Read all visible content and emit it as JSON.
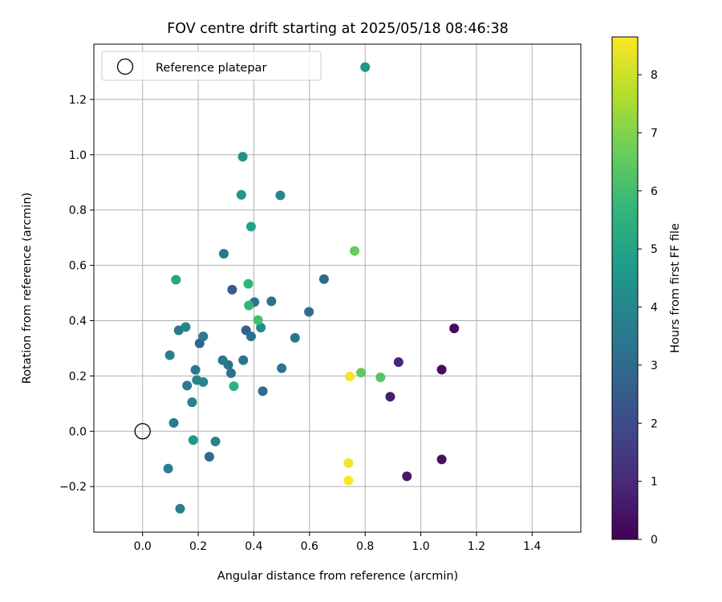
{
  "chart_data": {
    "type": "scatter",
    "title": "FOV centre drift starting at 2025/05/18 08:46:38",
    "xlabel": "Angular distance from reference (arcmin)",
    "ylabel": "Rotation from reference (arcmin)",
    "xlim": [
      -0.175,
      1.575
    ],
    "ylim": [
      -0.365,
      1.4
    ],
    "xticks": [
      0.0,
      0.2,
      0.4,
      0.6,
      0.8,
      1.0,
      1.2,
      1.4
    ],
    "yticks": [
      -0.2,
      0.0,
      0.2,
      0.4,
      0.6,
      0.8,
      1.0,
      1.2
    ],
    "grid": true,
    "legend": {
      "placement": "top-left",
      "entries": [
        "Reference platepar"
      ]
    },
    "reference_point": {
      "x": 0.0,
      "y": 0.0,
      "name": "Reference platepar"
    },
    "colorbar": {
      "label": "Hours from first FF file",
      "colormap": "viridis",
      "range": [
        0,
        8.65
      ],
      "ticks": [
        0,
        1,
        2,
        3,
        4,
        5,
        6,
        7,
        8
      ],
      "stops": [
        "#440154",
        "#482878",
        "#3e4a89",
        "#31688e",
        "#26828e",
        "#1f9e89",
        "#35b779",
        "#6ece58",
        "#b5de2b",
        "#fde725"
      ]
    },
    "points": [
      {
        "x": 1.12,
        "y": 0.372,
        "c": 0.2
      },
      {
        "x": 1.075,
        "y": 0.223,
        "c": 0.3
      },
      {
        "x": 1.075,
        "y": -0.102,
        "c": 0.4
      },
      {
        "x": 0.95,
        "y": -0.163,
        "c": 0.6
      },
      {
        "x": 0.92,
        "y": 0.25,
        "c": 0.9
      },
      {
        "x": 0.89,
        "y": 0.125,
        "c": 0.7
      },
      {
        "x": 0.322,
        "y": 0.512,
        "c": 2.5
      },
      {
        "x": 0.372,
        "y": 0.365,
        "c": 2.6
      },
      {
        "x": 0.205,
        "y": 0.318,
        "c": 2.8
      },
      {
        "x": 0.432,
        "y": 0.145,
        "c": 3.0
      },
      {
        "x": 0.24,
        "y": -0.092,
        "c": 3.0
      },
      {
        "x": 0.318,
        "y": 0.21,
        "c": 3.1
      },
      {
        "x": 0.652,
        "y": 0.55,
        "c": 3.0
      },
      {
        "x": 0.598,
        "y": 0.432,
        "c": 3.1
      },
      {
        "x": 0.463,
        "y": 0.47,
        "c": 3.2
      },
      {
        "x": 0.402,
        "y": 0.467,
        "c": 3.3
      },
      {
        "x": 0.39,
        "y": 0.343,
        "c": 3.2
      },
      {
        "x": 0.292,
        "y": 0.642,
        "c": 3.4
      },
      {
        "x": 0.308,
        "y": 0.24,
        "c": 3.3
      },
      {
        "x": 0.362,
        "y": 0.257,
        "c": 3.3
      },
      {
        "x": 0.5,
        "y": 0.228,
        "c": 3.4
      },
      {
        "x": 0.548,
        "y": 0.338,
        "c": 3.4
      },
      {
        "x": 0.19,
        "y": 0.222,
        "c": 3.5
      },
      {
        "x": 0.218,
        "y": 0.343,
        "c": 3.5
      },
      {
        "x": 0.13,
        "y": 0.365,
        "c": 3.5
      },
      {
        "x": 0.16,
        "y": 0.165,
        "c": 3.6
      },
      {
        "x": 0.288,
        "y": 0.257,
        "c": 3.6
      },
      {
        "x": 0.098,
        "y": 0.275,
        "c": 3.7
      },
      {
        "x": 0.112,
        "y": 0.03,
        "c": 3.7
      },
      {
        "x": 0.135,
        "y": -0.28,
        "c": 3.7
      },
      {
        "x": 0.092,
        "y": -0.135,
        "c": 3.8
      },
      {
        "x": 0.178,
        "y": 0.105,
        "c": 3.8
      },
      {
        "x": 0.195,
        "y": 0.185,
        "c": 3.9
      },
      {
        "x": 0.218,
        "y": 0.178,
        "c": 3.9
      },
      {
        "x": 0.262,
        "y": -0.037,
        "c": 3.9
      },
      {
        "x": 0.155,
        "y": 0.377,
        "c": 4.0
      },
      {
        "x": 0.495,
        "y": 0.853,
        "c": 4.0
      },
      {
        "x": 0.425,
        "y": 0.375,
        "c": 4.2
      },
      {
        "x": 0.36,
        "y": 0.993,
        "c": 4.3
      },
      {
        "x": 0.8,
        "y": 1.317,
        "c": 4.4
      },
      {
        "x": 0.355,
        "y": 0.855,
        "c": 4.5
      },
      {
        "x": 0.182,
        "y": -0.032,
        "c": 4.6
      },
      {
        "x": 0.39,
        "y": 0.74,
        "c": 5.0
      },
      {
        "x": 0.12,
        "y": 0.548,
        "c": 5.1
      },
      {
        "x": 0.328,
        "y": 0.163,
        "c": 5.5
      },
      {
        "x": 0.38,
        "y": 0.533,
        "c": 5.6
      },
      {
        "x": 0.382,
        "y": 0.455,
        "c": 5.7
      },
      {
        "x": 0.415,
        "y": 0.402,
        "c": 6.0
      },
      {
        "x": 0.855,
        "y": 0.195,
        "c": 6.3
      },
      {
        "x": 0.785,
        "y": 0.212,
        "c": 6.5
      },
      {
        "x": 0.762,
        "y": 0.652,
        "c": 6.6
      },
      {
        "x": 0.745,
        "y": 0.198,
        "c": 8.5
      },
      {
        "x": 0.74,
        "y": -0.115,
        "c": 8.5
      },
      {
        "x": 0.74,
        "y": -0.178,
        "c": 8.6
      }
    ]
  }
}
